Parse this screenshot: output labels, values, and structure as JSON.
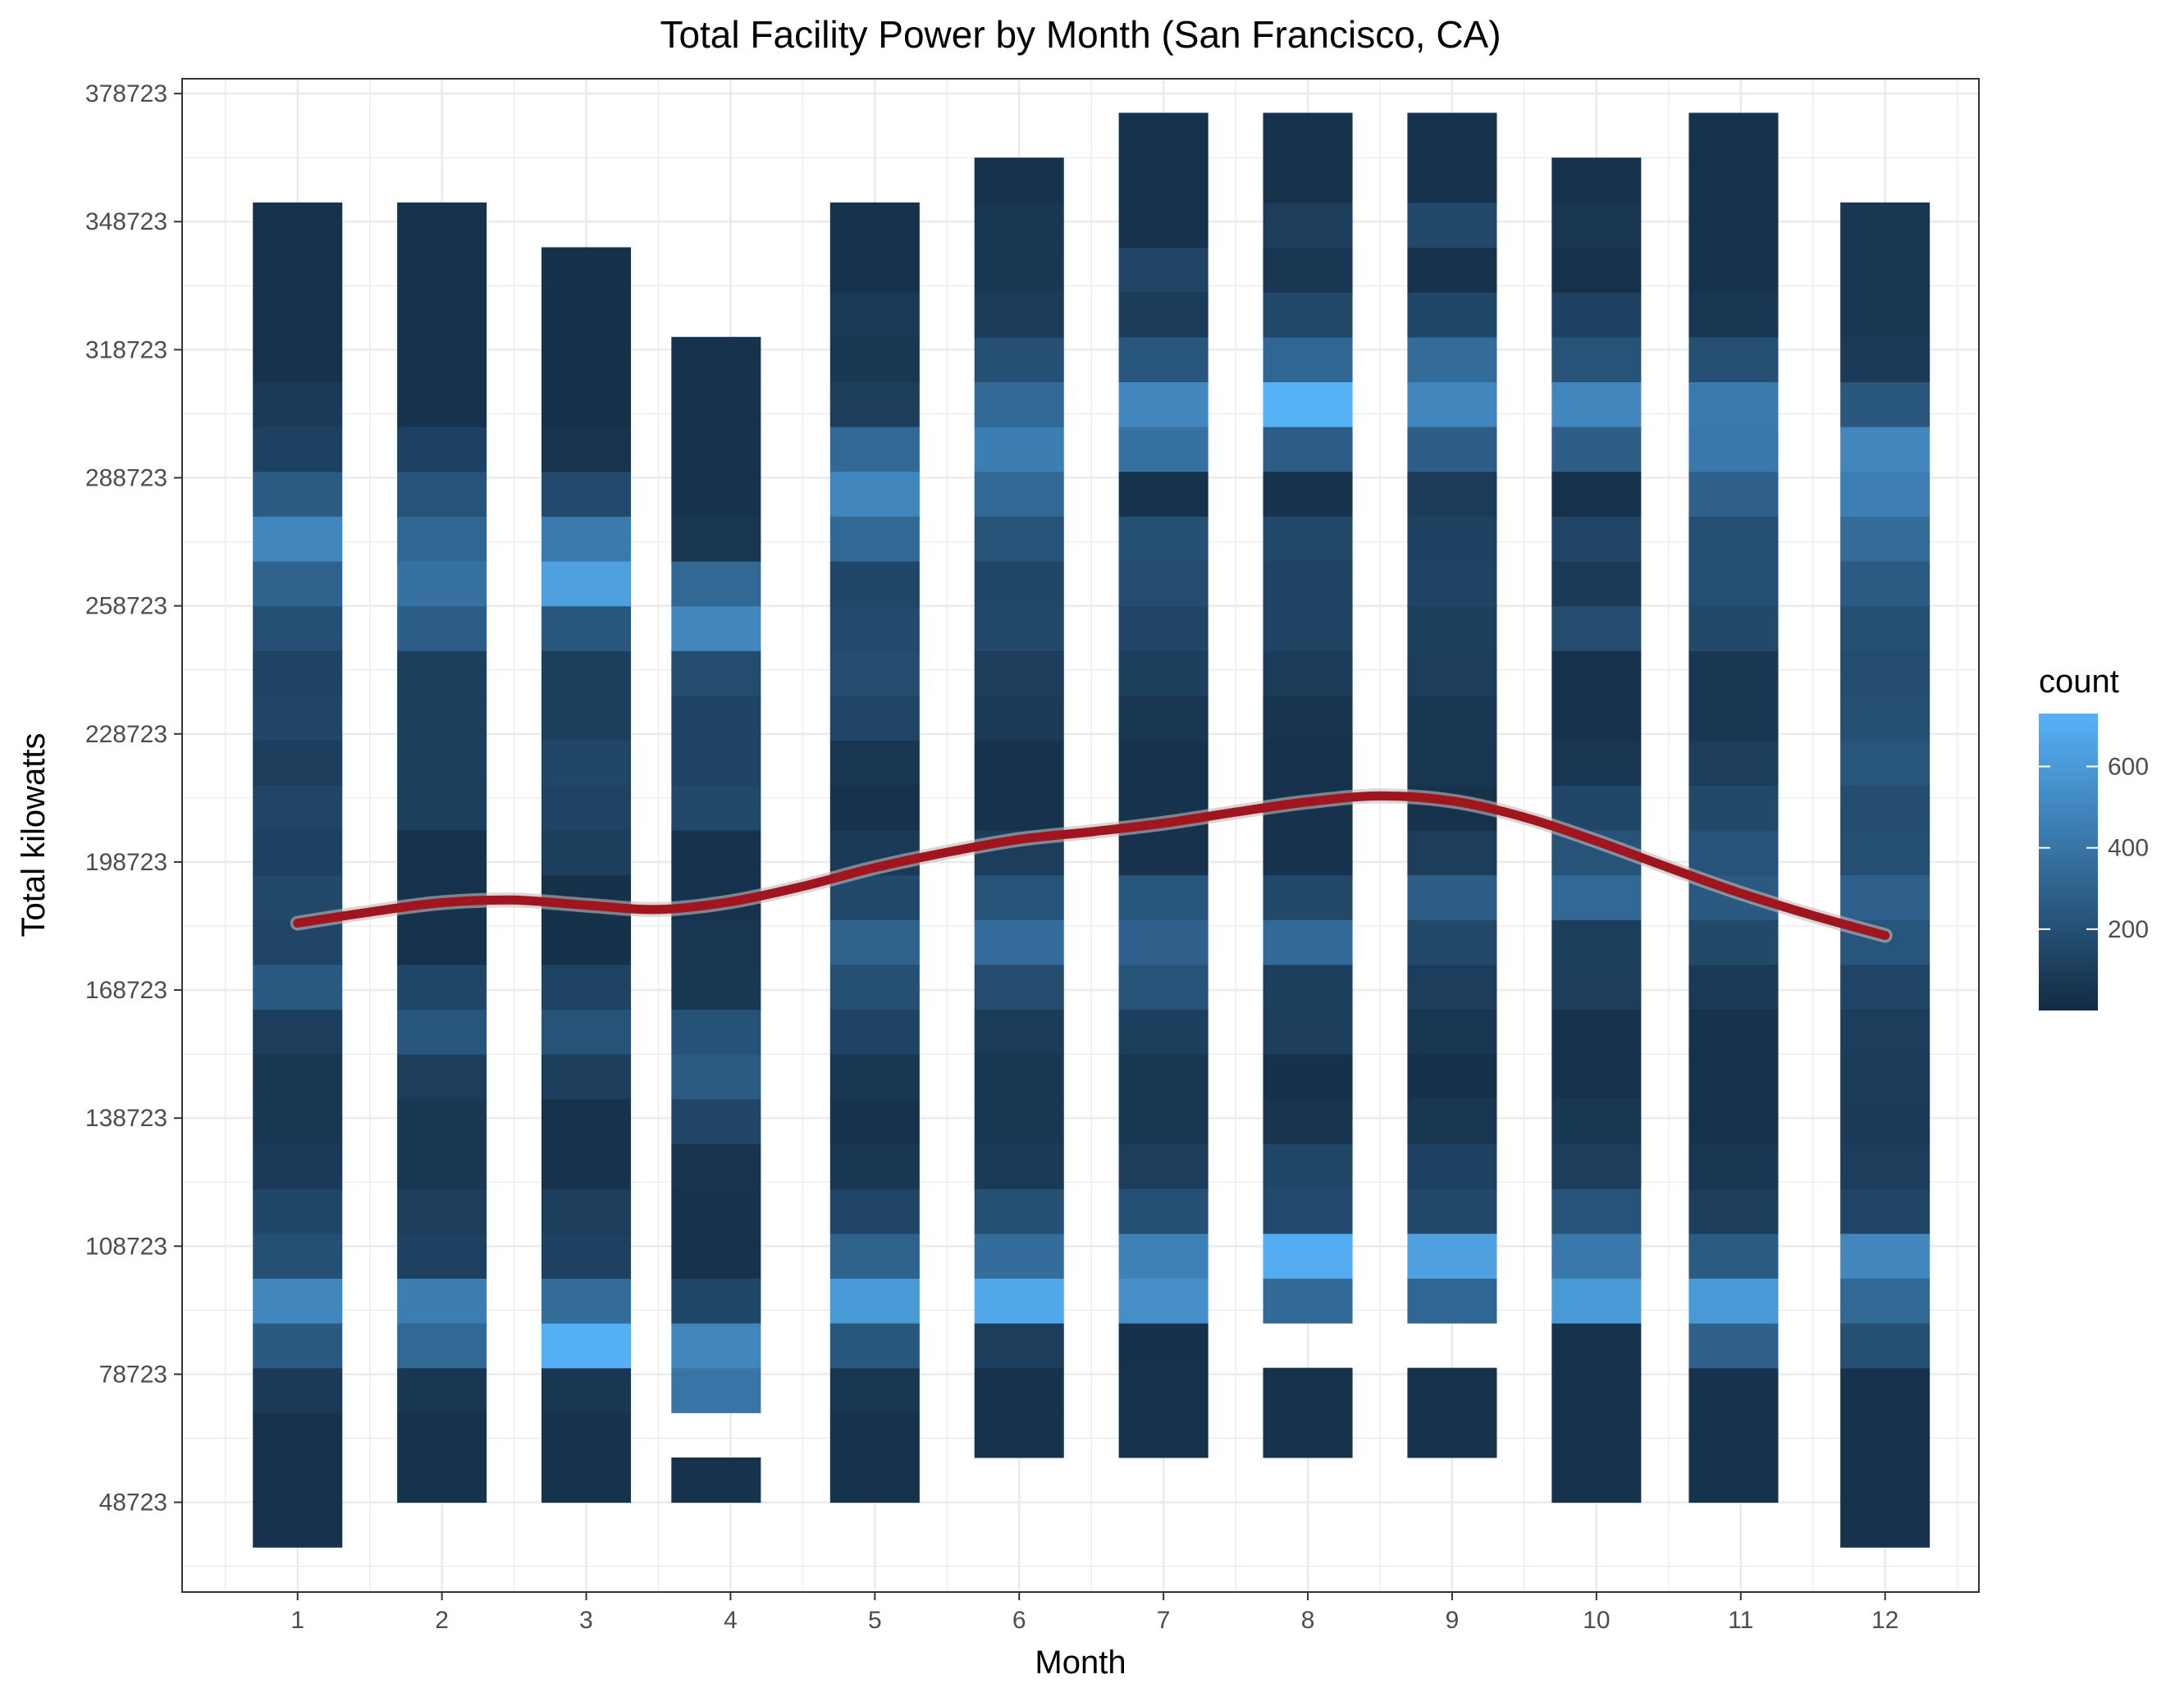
{
  "chart_data": {
    "type": "heatmap",
    "title": "Total Facility Power by Month (San Francisco, CA)",
    "xlabel": "Month",
    "ylabel": "Total kilowatts",
    "x_ticks": [
      "1",
      "2",
      "3",
      "4",
      "5",
      "6",
      "7",
      "8",
      "9",
      "10",
      "11",
      "12"
    ],
    "x_range": [
      0.2,
      12.65
    ],
    "y_ticks": [
      48723,
      78723,
      108723,
      138723,
      168723,
      198723,
      228723,
      258723,
      288723,
      318723,
      348723,
      378723
    ],
    "y_tick_labels": [
      "48723",
      "78723",
      "108723",
      "138723",
      "168723",
      "198723",
      "228723",
      "258723",
      "288723",
      "318723",
      "348723",
      "378723"
    ],
    "ylim": [
      27700,
      382200
    ],
    "bin_width_kw": 10500,
    "y_bottom_edge_kw": 38223,
    "grid": true,
    "legend": {
      "title": "count",
      "position": "right",
      "ticks": [
        200,
        400,
        600
      ],
      "tick_labels": [
        "200",
        "400",
        "600"
      ],
      "range": [
        0,
        730
      ],
      "color_low": "#132B43",
      "color_high": "#56B1F7"
    },
    "columns": [
      {
        "month": 1,
        "x_center": 1.0,
        "counts": [
          40,
          40,
          40,
          80,
          250,
          500,
          200,
          150,
          80,
          60,
          60,
          100,
          250,
          140,
          160,
          120,
          140,
          100,
          140,
          130,
          200,
          300,
          500,
          260,
          120,
          80,
          40,
          40,
          40,
          40
        ]
      },
      {
        "month": 2,
        "x_center": 2.0,
        "counts": [
          0,
          40,
          40,
          60,
          330,
          450,
          120,
          100,
          60,
          60,
          100,
          230,
          150,
          40,
          40,
          40,
          110,
          110,
          110,
          110,
          280,
          380,
          320,
          220,
          120,
          40,
          40,
          40,
          40,
          40
        ]
      },
      {
        "month": 3,
        "x_center": 3.0,
        "counts": [
          0,
          40,
          40,
          60,
          720,
          350,
          120,
          100,
          40,
          40,
          100,
          220,
          130,
          30,
          30,
          110,
          130,
          150,
          110,
          110,
          240,
          630,
          430,
          170,
          50,
          30,
          30,
          30,
          30,
          0
        ]
      },
      {
        "month": 4,
        "x_center": 3.9,
        "counts": [
          0,
          40,
          0,
          400,
          500,
          150,
          40,
          40,
          50,
          140,
          260,
          210,
          70,
          60,
          40,
          40,
          160,
          130,
          130,
          180,
          500,
          330,
          60,
          40,
          40,
          40,
          40,
          0,
          0,
          0
        ]
      },
      {
        "month": 5,
        "x_center": 5.0,
        "counts": [
          0,
          40,
          40,
          60,
          240,
          600,
          300,
          140,
          60,
          40,
          60,
          130,
          200,
          300,
          160,
          80,
          40,
          60,
          140,
          180,
          170,
          150,
          330,
          490,
          330,
          100,
          60,
          80,
          40,
          40
        ]
      },
      {
        "month": 6,
        "x_center": 6.0,
        "counts": [
          0,
          0,
          40,
          40,
          100,
          680,
          360,
          200,
          80,
          60,
          60,
          90,
          180,
          360,
          220,
          100,
          40,
          40,
          80,
          100,
          160,
          150,
          220,
          330,
          450,
          340,
          200,
          90,
          60,
          60,
          40
        ]
      },
      {
        "month": 7,
        "x_center": 7.0,
        "counts": [
          0,
          0,
          40,
          40,
          30,
          540,
          470,
          200,
          100,
          60,
          60,
          110,
          220,
          290,
          230,
          40,
          40,
          40,
          60,
          110,
          140,
          180,
          200,
          40,
          380,
          500,
          230,
          90,
          140,
          40,
          40,
          40
        ]
      },
      {
        "month": 8,
        "x_center": 8.0,
        "counts": [
          0,
          0,
          40,
          40,
          0,
          340,
          700,
          170,
          150,
          50,
          30,
          100,
          110,
          340,
          160,
          40,
          40,
          40,
          50,
          90,
          130,
          130,
          160,
          40,
          270,
          730,
          320,
          160,
          60,
          100,
          40,
          40
        ]
      },
      {
        "month": 9,
        "x_center": 9.0,
        "counts": [
          0,
          0,
          40,
          40,
          0,
          320,
          640,
          160,
          120,
          60,
          30,
          60,
          100,
          160,
          280,
          100,
          40,
          60,
          70,
          100,
          110,
          130,
          120,
          90,
          280,
          500,
          350,
          150,
          40,
          160,
          40,
          40
        ]
      },
      {
        "month": 10,
        "x_center": 10.0,
        "counts": [
          0,
          40,
          40,
          40,
          40,
          600,
          420,
          220,
          100,
          70,
          40,
          40,
          100,
          110,
          330,
          220,
          150,
          60,
          40,
          40,
          180,
          80,
          140,
          40,
          280,
          500,
          220,
          120,
          40,
          60,
          40
        ]
      },
      {
        "month": 11,
        "x_center": 10.95,
        "counts": [
          0,
          40,
          40,
          40,
          290,
          600,
          260,
          100,
          60,
          40,
          40,
          40,
          80,
          160,
          250,
          220,
          160,
          100,
          60,
          60,
          160,
          190,
          200,
          290,
          420,
          430,
          200,
          60,
          40,
          40,
          40,
          40
        ]
      },
      {
        "month": 12,
        "x_center": 12.0,
        "counts": [
          40,
          40,
          40,
          40,
          200,
          330,
          500,
          140,
          100,
          80,
          90,
          100,
          140,
          230,
          290,
          200,
          180,
          230,
          200,
          180,
          200,
          260,
          350,
          460,
          500,
          240,
          80,
          60,
          60,
          60
        ]
      }
    ],
    "smooth_line": {
      "color": "#a0151e",
      "x": [
        1.0,
        1.5,
        2.0,
        2.5,
        3.0,
        3.5,
        4.0,
        4.5,
        5.0,
        5.5,
        6.0,
        6.5,
        7.0,
        7.5,
        8.0,
        8.5,
        9.0,
        9.5,
        10.0,
        10.5,
        11.0,
        11.5,
        12.0
      ],
      "y": [
        184400,
        187000,
        189200,
        189800,
        188600,
        187600,
        189400,
        193000,
        197400,
        201000,
        204000,
        205800,
        207800,
        210400,
        212800,
        214200,
        213000,
        209200,
        203600,
        197400,
        191400,
        186200,
        181500
      ]
    }
  }
}
